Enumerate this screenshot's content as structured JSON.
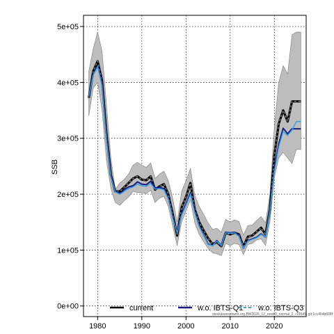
{
  "chart_data": {
    "type": "line",
    "title": "",
    "xlabel": "",
    "ylabel": "SSB",
    "xlim": [
      1976.8,
      2027.2
    ],
    "ylim": [
      -19000,
      520000
    ],
    "x_ticks": [
      1980,
      1990,
      2000,
      2010,
      2020
    ],
    "x_tick_labels": [
      "1980",
      "1990",
      "2000",
      "2010",
      "2020"
    ],
    "y_ticks": [
      0,
      100000,
      200000,
      300000,
      400000,
      500000
    ],
    "y_tick_labels": [
      "0e+00",
      "1e+05",
      "2e+05",
      "3e+05",
      "4e+05",
      "5e+05"
    ],
    "grid": true,
    "legend_position": "bottom",
    "watermark": "stockassessment.org,BW2026_12_newID_normal_2, r19649, git:1cc464b808f",
    "x": [
      1978,
      1979,
      1980,
      1981,
      1982,
      1983,
      1984,
      1985,
      1986,
      1987,
      1988,
      1989,
      1990,
      1991,
      1992,
      1993,
      1994,
      1995,
      1996,
      1997,
      1998,
      1999,
      2000,
      2001,
      2002,
      2003,
      2004,
      2005,
      2006,
      2007,
      2008,
      2009,
      2010,
      2011,
      2012,
      2013,
      2014,
      2015,
      2016,
      2017,
      2018,
      2019,
      2020,
      2021,
      2022,
      2023,
      2024,
      2025,
      2026
    ],
    "confidence_band": {
      "upper": [
        420000,
        460000,
        490000,
        455000,
        360000,
        265000,
        208000,
        220000,
        226000,
        236000,
        252000,
        257000,
        252000,
        248000,
        256000,
        228000,
        236000,
        241000,
        224000,
        192000,
        150000,
        205000,
        224000,
        246000,
        198000,
        178000,
        164000,
        149000,
        137000,
        139000,
        132000,
        155000,
        150000,
        154000,
        151000,
        127000,
        144000,
        145000,
        153000,
        160000,
        149000,
        200000,
        320000,
        400000,
        430000,
        415000,
        485000,
        490000,
        490000
      ],
      "lower": [
        340000,
        390000,
        400000,
        350000,
        260000,
        210000,
        185000,
        180000,
        188000,
        195000,
        205000,
        203000,
        203000,
        201000,
        207000,
        185000,
        193000,
        196000,
        178000,
        142000,
        108000,
        150000,
        170000,
        190000,
        148000,
        128000,
        115000,
        103000,
        95000,
        93000,
        90000,
        112000,
        108000,
        112000,
        110000,
        92000,
        110000,
        112000,
        118000,
        120000,
        108000,
        150000,
        230000,
        265000,
        275000,
        265000,
        255000,
        280000,
        280000
      ]
    },
    "series": [
      {
        "name": "current",
        "color": "#000000",
        "style": "dashed-on-black",
        "values": [
          372000,
          420000,
          438000,
          403000,
          308000,
          234000,
          205000,
          205000,
          212000,
          220000,
          228000,
          232000,
          226000,
          225000,
          232000,
          208000,
          214000,
          218000,
          200000,
          164000,
          126000,
          176000,
          195000,
          220000,
          172000,
          150000,
          135000,
          121000,
          111000,
          114000,
          107000,
          131000,
          128000,
          131000,
          128000,
          106000,
          124000,
          126000,
          133000,
          140000,
          128000,
          173000,
          270000,
          326000,
          350000,
          330000,
          366000,
          366000,
          366000
        ]
      },
      {
        "name": "w.o. IBTS-Q1",
        "color": "#1a1a80",
        "style": "solid",
        "values": [
          374000,
          415000,
          430000,
          397000,
          300000,
          233000,
          206000,
          201000,
          208000,
          213000,
          215000,
          222000,
          218000,
          217000,
          223000,
          211000,
          212000,
          210000,
          193000,
          158000,
          130000,
          165000,
          183000,
          203000,
          168000,
          144000,
          127000,
          111000,
          108000,
          117000,
          108000,
          132000,
          131000,
          132000,
          125000,
          103000,
          117000,
          120000,
          123000,
          129000,
          123000,
          172000,
          245000,
          290000,
          318000,
          308000,
          317000,
          317000,
          317000
        ]
      },
      {
        "name": "w.o. IBTS-Q3",
        "color": "#3aa0e0",
        "style": "dashed",
        "values": [
          375000,
          413000,
          428000,
          393000,
          298000,
          230000,
          204000,
          200000,
          205000,
          210000,
          213000,
          218000,
          215000,
          214000,
          219000,
          209000,
          210000,
          208000,
          191000,
          156000,
          131000,
          162000,
          180000,
          200000,
          166000,
          142000,
          126000,
          110000,
          108000,
          116000,
          108000,
          131000,
          130000,
          131000,
          124000,
          103000,
          116000,
          119000,
          122000,
          128000,
          123000,
          170000,
          240000,
          285000,
          312000,
          305000,
          315000,
          330000,
          330000
        ]
      }
    ]
  }
}
